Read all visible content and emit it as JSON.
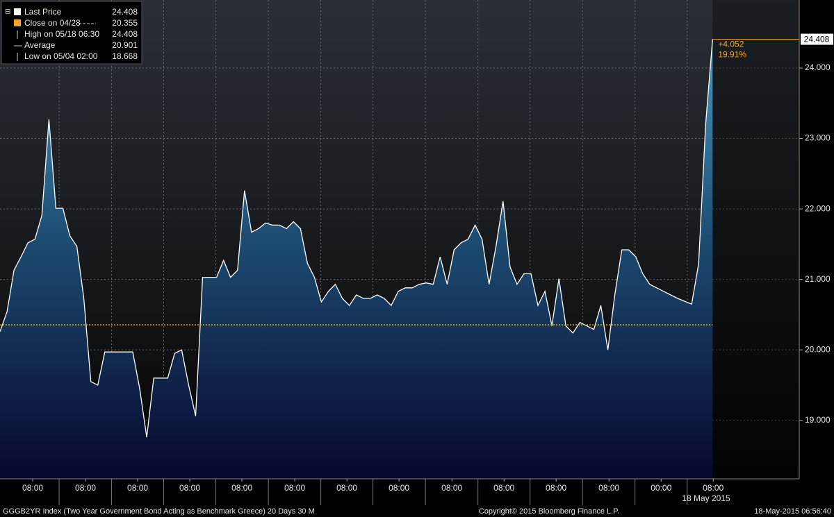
{
  "chart_data": {
    "type": "area",
    "title": "GGGB2YR Index (Two Year Government Bond Acting as Benchmark Greece) 20 Days 30 M",
    "copyright": "Copyright© 2015 Bloomberg Finance L.P.",
    "timestamp": "18-May-2015 06:56:40",
    "legend": [
      {
        "label": "Last Price",
        "value": 24.408
      },
      {
        "label": "Close on 04/28",
        "value": 20.355
      },
      {
        "label": "High on 05/18 06:30",
        "value": 24.408
      },
      {
        "label": "Average",
        "value": 20.901
      },
      {
        "label": "Low on 05/04 02:00",
        "value": 18.668
      }
    ],
    "change": {
      "value": 4.052,
      "label": "+4.052"
    },
    "change_pct": {
      "value": 19.91,
      "label": "19.91%"
    },
    "series": [
      {
        "color": "#ffffff",
        "values": [
          20.26,
          20.54,
          21.13,
          21.32,
          21.52,
          21.57,
          21.91,
          23.27,
          22.01,
          22.01,
          21.62,
          21.47,
          20.73,
          19.55,
          19.5,
          19.97,
          19.97,
          19.97,
          19.97,
          19.97,
          19.45,
          18.76,
          19.6,
          19.6,
          19.6,
          19.95,
          20.0,
          19.5,
          19.06,
          21.03,
          21.03,
          21.03,
          21.27,
          21.03,
          21.13,
          22.26,
          21.67,
          21.72,
          21.8,
          21.77,
          21.77,
          21.72,
          21.82,
          21.72,
          21.23,
          21.03,
          20.68,
          20.83,
          20.93,
          20.73,
          20.63,
          20.78,
          20.73,
          20.73,
          20.78,
          20.73,
          20.63,
          20.83,
          20.88,
          20.88,
          20.93,
          20.95,
          20.93,
          21.32,
          20.93,
          21.42,
          21.52,
          21.57,
          21.77,
          21.57,
          20.93,
          21.47,
          22.11,
          21.18,
          20.93,
          21.08,
          21.08,
          20.63,
          20.83,
          20.34,
          21.01,
          20.34,
          20.24,
          20.39,
          20.34,
          20.29,
          20.63,
          20.0,
          20.78,
          21.42,
          21.42,
          21.32,
          21.08,
          20.93,
          20.88,
          20.83,
          20.78,
          20.73,
          20.69,
          20.65,
          21.22,
          23.2,
          24.408
        ]
      }
    ],
    "close_color": "#f5a623",
    "xlim": [
      0,
      114.4
    ],
    "ylim": [
      18.17,
      24.965
    ],
    "yticks": [
      {
        "value": 19,
        "label": "19.000"
      },
      {
        "value": 20,
        "label": "20.000"
      },
      {
        "value": 21,
        "label": "21.000"
      },
      {
        "value": 22,
        "label": "22.000"
      },
      {
        "value": 23,
        "label": "23.000"
      },
      {
        "value": 24,
        "label": "24.000"
      }
    ],
    "xticks": [
      {
        "value": 4.68,
        "label": "08:00"
      },
      {
        "value": 12.24,
        "label": "08:00"
      },
      {
        "value": 19.7,
        "label": "08:00"
      },
      {
        "value": 27.16,
        "label": "08:00"
      },
      {
        "value": 34.63,
        "label": "08:00"
      },
      {
        "value": 42.19,
        "label": "08:00"
      },
      {
        "value": 49.65,
        "label": "08:00"
      },
      {
        "value": 57.11,
        "label": "08:00"
      },
      {
        "value": 64.68,
        "label": "08:00"
      },
      {
        "value": 72.14,
        "label": "08:00"
      },
      {
        "value": 79.6,
        "label": "08:00"
      },
      {
        "value": 87.16,
        "label": "08:00"
      },
      {
        "value": 94.63,
        "label": "00:00"
      },
      {
        "value": 102.09,
        "label": "08:00"
      }
    ],
    "x_sublabel": "18 May 2015",
    "grid": true
  }
}
